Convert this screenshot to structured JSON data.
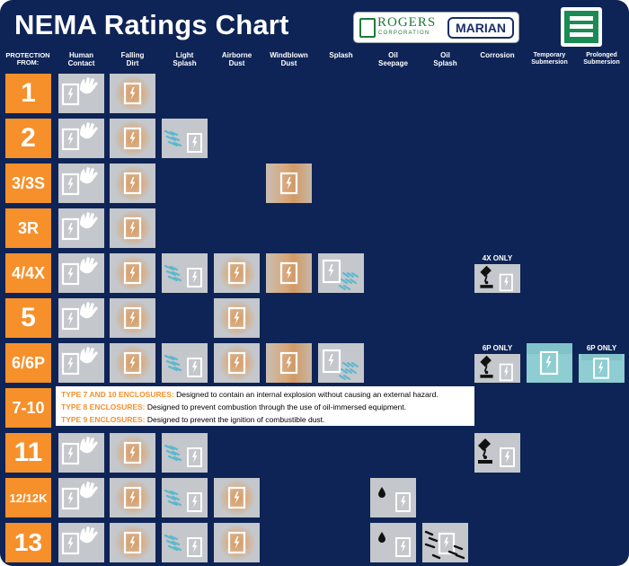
{
  "header": {
    "title": "NEMA Ratings Chart",
    "logo_rogers_name": "ROGERS",
    "logo_rogers_sub": "CORPORATION",
    "logo_marian": "MARIAN"
  },
  "columns": [
    {
      "line1": "PROTECTION",
      "line2": "FROM:"
    },
    {
      "line1": "Human",
      "line2": "Contact"
    },
    {
      "line1": "Falling",
      "line2": "Dirt"
    },
    {
      "line1": "Light",
      "line2": "Splash"
    },
    {
      "line1": "Airborne",
      "line2": "Dust"
    },
    {
      "line1": "Windblown",
      "line2": "Dust"
    },
    {
      "line1": "Splash",
      "line2": ""
    },
    {
      "line1": "Oil",
      "line2": "Seepage"
    },
    {
      "line1": "Oil",
      "line2": "Splash"
    },
    {
      "line1": "Corrosion",
      "line2": ""
    },
    {
      "line1": "Temporary",
      "line2": "Submersion"
    },
    {
      "line1": "Prolonged",
      "line2": "Submersion"
    }
  ],
  "icon_names": {
    "human": "hand-and-enclosure-icon",
    "falling": "falling-dirt-enclosure-icon",
    "light": "light-splash-enclosure-icon",
    "airborne": "airborne-dust-enclosure-icon",
    "windblown": "windblown-dust-enclosure-icon",
    "splash": "splash-enclosure-icon",
    "oilseep": "oil-seepage-enclosure-icon",
    "oilsplash": "oil-splash-enclosure-icon",
    "corrosion": "corrosion-enclosure-icon",
    "tempsub": "temporary-submersion-enclosure-icon",
    "prolsub": "prolonged-submersion-enclosure-icon"
  },
  "rows": [
    {
      "label": "1",
      "cells": [
        "human",
        "falling"
      ]
    },
    {
      "label": "2",
      "cells": [
        "human",
        "falling",
        "light"
      ]
    },
    {
      "label": "3/3S",
      "cells": [
        "human",
        "falling",
        "",
        "",
        "windblown"
      ]
    },
    {
      "label": "3R",
      "cells": [
        "human",
        "falling"
      ]
    },
    {
      "label": "4/4X",
      "cells": [
        "human",
        "falling",
        "light",
        "airborne",
        "windblown",
        "splash",
        "",
        "",
        "corrosion"
      ],
      "notes": {
        "8": "4X ONLY"
      }
    },
    {
      "label": "5",
      "cells": [
        "human",
        "falling",
        "",
        "airborne"
      ]
    },
    {
      "label": "6/6P",
      "cells": [
        "human",
        "falling",
        "light",
        "airborne",
        "windblown",
        "splash",
        "",
        "",
        "corrosion",
        "tempsub",
        "prolsub"
      ],
      "notes": {
        "8": "6P ONLY",
        "10": "6P ONLY"
      }
    },
    {
      "label": "7-10",
      "cells": []
    },
    {
      "label": "11",
      "cells": [
        "human",
        "falling",
        "light",
        "",
        "",
        "",
        "",
        "",
        "corrosion"
      ]
    },
    {
      "label": "12/12K",
      "cells": [
        "human",
        "falling",
        "light",
        "airborne",
        "",
        "",
        "oilseep"
      ]
    },
    {
      "label": "13",
      "cells": [
        "human",
        "falling",
        "light",
        "airborne",
        "",
        "",
        "oilseep",
        "oilsplash"
      ]
    }
  ],
  "enclosure_notes": [
    {
      "label": "TYPE 7 AND 10 ENCLOSURES:",
      "text": " Designed to contain an internal explosion without causing an external hazard."
    },
    {
      "label": "TYPE 8 ENCLOSURES:",
      "text": " Designed to prevent combustion through the use of oil-immersed equipment."
    },
    {
      "label": "TYPE 9 ENCLOSURES:",
      "text": " Designed to prevent the ignition of combustible dust."
    }
  ],
  "colors": {
    "background": "#0e2456",
    "row_label": "#f6902b",
    "cell": "#c4c7cb",
    "submersion": "#8ecdd2",
    "splash_accent": "#5ab8cf"
  }
}
